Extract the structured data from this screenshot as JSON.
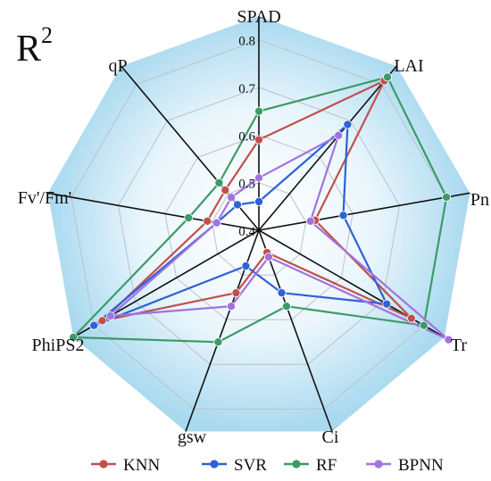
{
  "chart_data": {
    "type": "radar",
    "title": "R",
    "title_superscript": "2",
    "axes": [
      "SPAD",
      "LAI",
      "Pn",
      "Tr",
      "Ci",
      "gsw",
      "PhiPS2",
      "Fv'/Fm'",
      "qP"
    ],
    "rlim": [
      0.4,
      0.85
    ],
    "ticks": [
      0.4,
      0.5,
      0.6,
      0.7,
      0.8
    ],
    "tick_labels": [
      "0.4",
      "0.5",
      "0.6",
      "0.7",
      "0.8"
    ],
    "grid": true,
    "legend_position": "bottom",
    "series": [
      {
        "name": "KNN",
        "color": "#c0504d",
        "values": [
          0.59,
          0.81,
          0.52,
          0.77,
          0.45,
          0.54,
          0.78,
          0.51,
          0.51
        ]
      },
      {
        "name": "SVR",
        "color": "#2e62d6",
        "values": [
          0.46,
          0.69,
          0.58,
          0.71,
          0.54,
          0.48,
          0.8,
          0.49,
          0.47
        ]
      },
      {
        "name": "RF",
        "color": "#3d9a68",
        "values": [
          0.65,
          0.82,
          0.8,
          0.8,
          0.57,
          0.65,
          0.85,
          0.55,
          0.53
        ]
      },
      {
        "name": "BPNN",
        "color": "#a272e0",
        "values": [
          0.51,
          0.66,
          0.51,
          0.86,
          0.46,
          0.57,
          0.76,
          0.49,
          0.49
        ]
      }
    ]
  }
}
